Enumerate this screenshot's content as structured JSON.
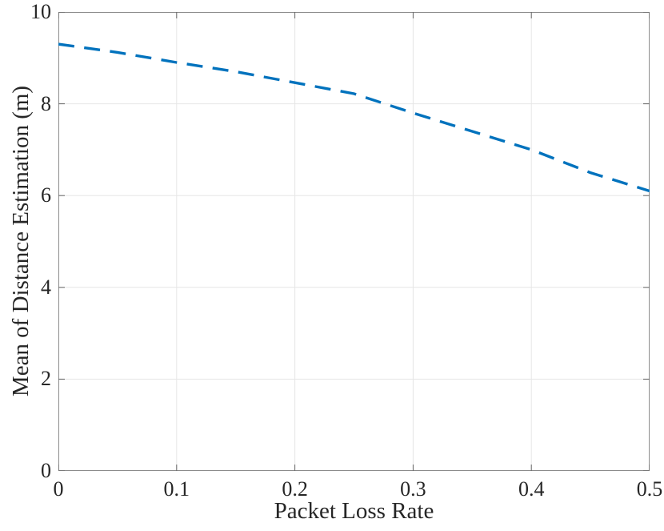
{
  "chart_data": {
    "type": "line",
    "title": "",
    "xlabel": "Packet Loss Rate",
    "ylabel": "Mean of Distance Estimation (m)",
    "xlim": [
      0,
      0.5
    ],
    "ylim": [
      0,
      10
    ],
    "xticks": [
      0,
      0.1,
      0.2,
      0.3,
      0.4,
      0.5
    ],
    "xtick_labels": [
      "0",
      "0.1",
      "0.2",
      "0.3",
      "0.4",
      "0.5"
    ],
    "yticks": [
      0,
      2,
      4,
      6,
      8,
      10
    ],
    "ytick_labels": [
      "0",
      "2",
      "4",
      "6",
      "8",
      "10"
    ],
    "grid": true,
    "legend": "none",
    "series": [
      {
        "name": "Mean of Distance Estimation",
        "color": "#0072BD",
        "line_style": "dashed",
        "line_width": 3.4,
        "x": [
          0,
          0.05,
          0.1,
          0.15,
          0.2,
          0.25,
          0.3,
          0.35,
          0.4,
          0.45,
          0.5
        ],
        "y": [
          9.3,
          9.12,
          8.9,
          8.7,
          8.46,
          8.22,
          7.8,
          7.4,
          7.0,
          6.5,
          6.1
        ]
      }
    ],
    "colors": {
      "grid": "#e6e6e6",
      "axis_box": "#8c8c8c",
      "tick_mark": "#666666",
      "text": "#262626",
      "background": "#ffffff"
    }
  }
}
